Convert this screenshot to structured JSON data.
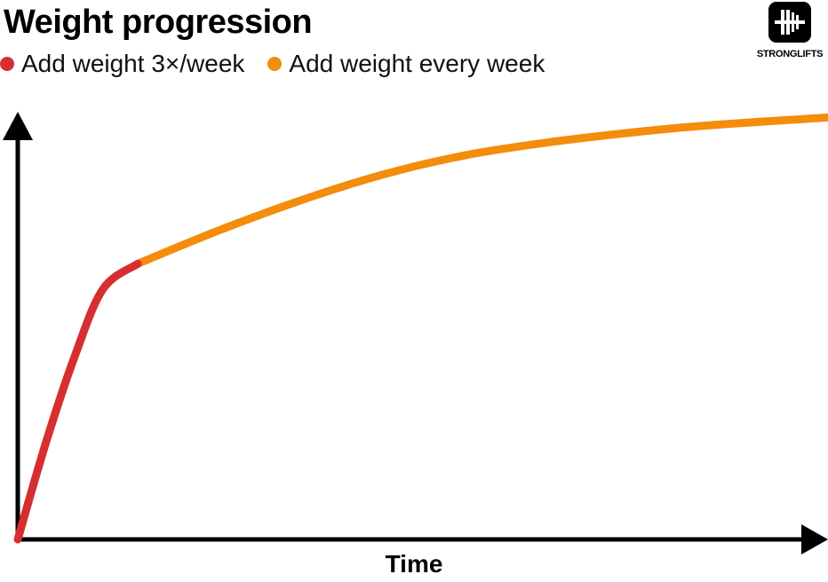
{
  "chart_data": {
    "type": "line",
    "title": "Weight progression",
    "xlabel": "Time",
    "ylabel": "",
    "xlim": [
      0,
      100
    ],
    "ylim": [
      0,
      100
    ],
    "grid": false,
    "legend_position": "top-left",
    "series": [
      {
        "name": "Add weight 3×/week",
        "color": "#d62f2f",
        "x": [
          0,
          3.5,
          7,
          10.5,
          14.8
        ],
        "y": [
          0,
          23,
          43,
          59,
          65
        ]
      },
      {
        "name": "Add weight every week",
        "color": "#f48c0c",
        "x": [
          14.8,
          25,
          35,
          45,
          55,
          65,
          75,
          85,
          100
        ],
        "y": [
          65,
          73,
          80,
          86,
          90.5,
          93.5,
          95.8,
          97.6,
          99.5
        ]
      }
    ]
  },
  "logo": {
    "text": "STRONGLIFTS",
    "icon": "barbell-plates-icon"
  }
}
